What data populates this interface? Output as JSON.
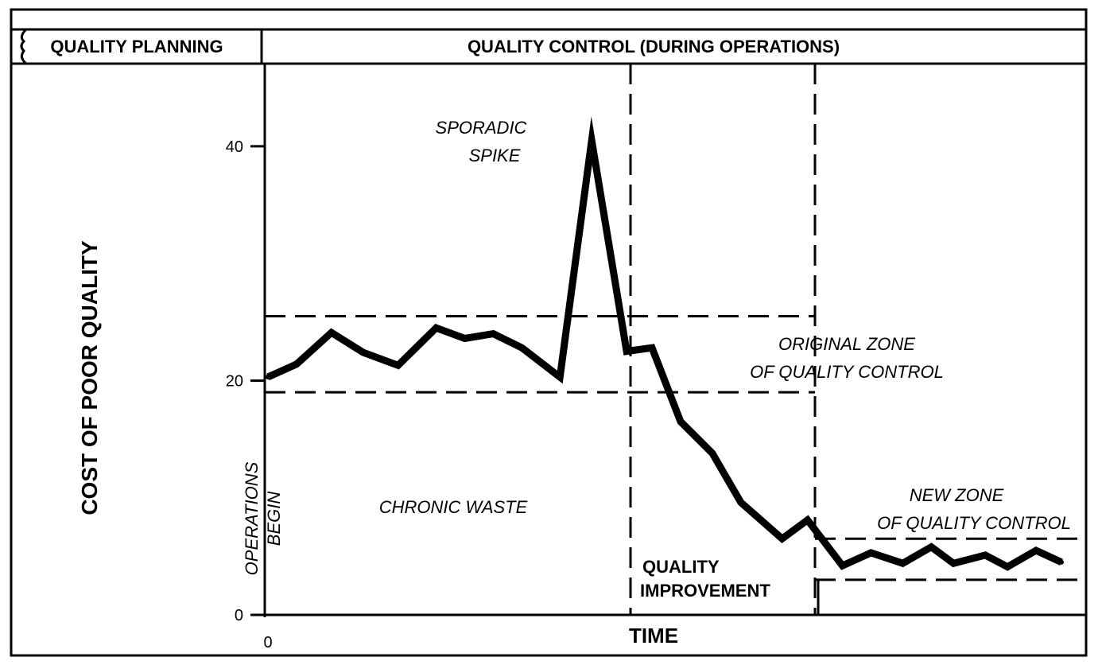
{
  "header": {
    "left_label": "QUALITY PLANNING",
    "right_label": "QUALITY CONTROL (DURING OPERATIONS)"
  },
  "chart_data": {
    "type": "line",
    "title": "",
    "xlabel": "TIME",
    "ylabel": "COST OF POOR QUALITY",
    "ylim": [
      0,
      44
    ],
    "y_ticks": [
      0,
      20,
      40
    ],
    "x_ticks": [
      "0"
    ],
    "grid": false,
    "series": [
      {
        "values": [
          20.3,
          21.4,
          24.1,
          22.4,
          21.3,
          24.5,
          23.6,
          24.0,
          22.8,
          20.3,
          40.5,
          22.5,
          22.8,
          16.5,
          13.8,
          9.6,
          6.5,
          8.1,
          4.2,
          5.3,
          4.4,
          5.8,
          4.4,
          5.1,
          4.1,
          5.5,
          4.5
        ],
        "x": [
          0,
          0.9,
          2.0,
          3.0,
          4.1,
          5.3,
          6.2,
          7.1,
          8.0,
          9.2,
          10.2,
          11.3,
          12.1,
          13.0,
          14.0,
          14.9,
          16.2,
          17.0,
          18.1,
          19.0,
          20.0,
          20.9,
          21.6,
          22.6,
          23.3,
          24.2,
          25.0
        ]
      }
    ],
    "annotations": {
      "spike_line1": "SPORADIC",
      "spike_line2": "SPIKE",
      "chronic": "CHRONIC WASTE",
      "ops_line1": "OPERATIONS",
      "ops_line2": "BEGIN",
      "orig_line1": "ORIGINAL ZONE",
      "orig_line2": "OF QUALITY CONTROL",
      "new_line1": "NEW ZONE",
      "new_line2": "OF QUALITY CONTROL",
      "qi_line1": "QUALITY",
      "qi_line2": "IMPROVEMENT"
    },
    "zones": {
      "original": {
        "upper": 25.5,
        "lower": 19.0
      },
      "new": {
        "upper": 6.5,
        "lower": 3.0
      }
    }
  }
}
